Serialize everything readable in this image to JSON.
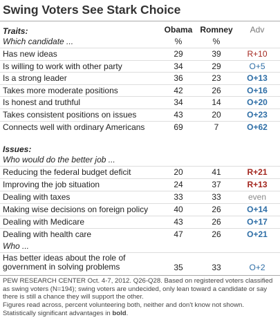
{
  "title": "Swing Voters See Stark Choice",
  "columns": {
    "obama": "Obama",
    "romney": "Romney",
    "adv": "Adv",
    "obama_unit": "%",
    "romney_unit": "%"
  },
  "sections": [
    {
      "label": "Traits:",
      "sublabel": "Which candidate ...",
      "rows": [
        {
          "name": "Has new ideas",
          "obama": 29,
          "romney": 39,
          "adv": "R+10",
          "significant": false
        },
        {
          "name": "Is willing to work with other party",
          "obama": 34,
          "romney": 29,
          "adv": "O+5",
          "significant": false
        },
        {
          "name": "Is a strong leader",
          "obama": 36,
          "romney": 23,
          "adv": "O+13",
          "significant": true
        },
        {
          "name": "Takes more moderate positions",
          "obama": 42,
          "romney": 26,
          "adv": "O+16",
          "significant": true
        },
        {
          "name": "Is honest and truthful",
          "obama": 34,
          "romney": 14,
          "adv": "O+20",
          "significant": true
        },
        {
          "name": "Takes consistent positions on issues",
          "obama": 43,
          "romney": 20,
          "adv": "O+23",
          "significant": true
        },
        {
          "name": "Connects well with ordinary Americans",
          "obama": 69,
          "romney": 7,
          "adv": "O+62",
          "significant": true
        }
      ]
    },
    {
      "label": "Issues:",
      "sublabel": "Who would do the better job ...",
      "rows": [
        {
          "name": "Reducing the federal budget deficit",
          "obama": 20,
          "romney": 41,
          "adv": "R+21",
          "significant": true
        },
        {
          "name": "Improving the job situation",
          "obama": 24,
          "romney": 37,
          "adv": "R+13",
          "significant": true
        },
        {
          "name": "Dealing with taxes",
          "obama": 33,
          "romney": 33,
          "adv": "even",
          "significant": false
        },
        {
          "name": "Making wise decisions on foreign policy",
          "obama": 40,
          "romney": 26,
          "adv": "O+14",
          "significant": true
        },
        {
          "name": "Dealing with Medicare",
          "obama": 43,
          "romney": 26,
          "adv": "O+17",
          "significant": true
        },
        {
          "name": "Dealing with health care",
          "obama": 47,
          "romney": 26,
          "adv": "O+21",
          "significant": true
        }
      ]
    },
    {
      "sublabel": "Who ...",
      "rows": [
        {
          "name": "Has better ideas about the role of government in solving problems",
          "obama": 35,
          "romney": 33,
          "adv": "O+2",
          "significant": false
        }
      ]
    }
  ],
  "footer": {
    "source": "PEW RESEARCH CENTER Oct. 4-7, 2012. Q26-Q28. Based on registered voters classified as swing voters (N=194); swing voters are undecided, only lean toward a candidate or say there is still a chance they will support the other.",
    "note": "Figures read across, percent volunteering both, neither and don't know not shown. Statistically significant advantages in",
    "bold_word": "bold",
    "end": "."
  }
}
